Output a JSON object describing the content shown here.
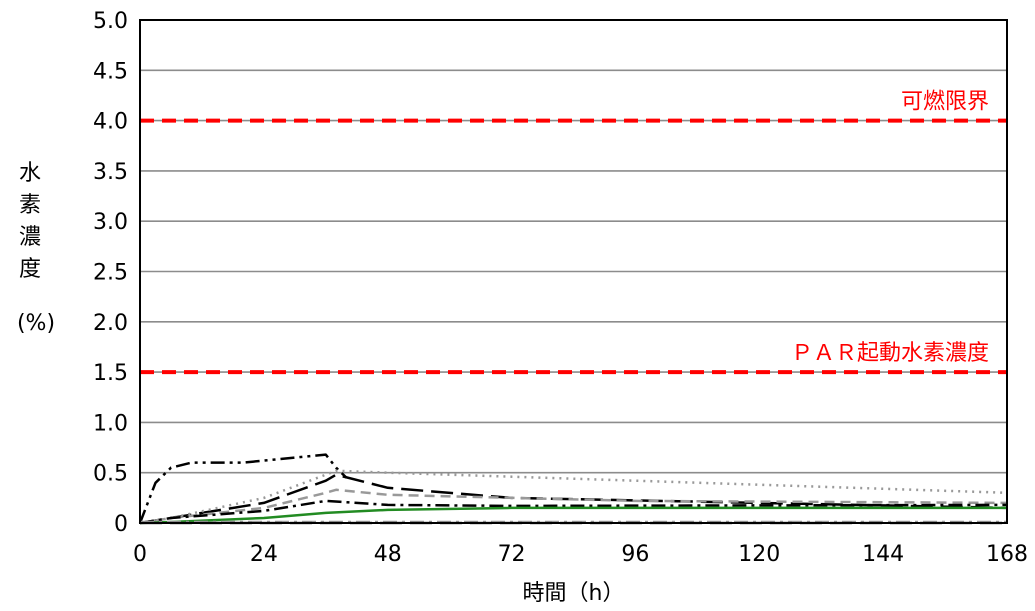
{
  "chart_data": {
    "type": "line",
    "xlabel": "時間（h）",
    "ylabel_chars": [
      "水",
      "素",
      "濃",
      "度"
    ],
    "ylabel_unit": "(%)",
    "xlim": [
      0,
      168
    ],
    "ylim": [
      0,
      5
    ],
    "x_ticks": [
      0,
      24,
      48,
      72,
      96,
      120,
      144,
      168
    ],
    "y_ticks": [
      0,
      0.5,
      1.0,
      1.5,
      2.0,
      2.5,
      3.0,
      3.5,
      4.0,
      4.5,
      5.0
    ],
    "y_tick_labels": [
      "0",
      "0.5",
      "1.0",
      "1.5",
      "2.0",
      "2.5",
      "3.0",
      "3.5",
      "4.0",
      "4.5",
      "5.0"
    ],
    "x_tick_labels": [
      "0",
      "24",
      "48",
      "72",
      "96",
      "120",
      "144",
      "168"
    ],
    "grid": "horizontal",
    "reference_lines": [
      {
        "label": "可燃限界",
        "y": 4.0,
        "color": "#ff0000"
      },
      {
        "label": "ＰＡＲ起動水素濃度",
        "y": 1.5,
        "color": "#ff0000"
      }
    ],
    "series": [
      {
        "style": "dash-dot-dot",
        "color": "#000000",
        "x": [
          0,
          3,
          6,
          10,
          20,
          36,
          38,
          40
        ],
        "y": [
          0,
          0.4,
          0.55,
          0.6,
          0.6,
          0.68,
          0.55,
          0.45
        ]
      },
      {
        "style": "long-dash",
        "color": "#000000",
        "x": [
          0,
          6,
          24,
          36,
          38,
          48,
          72,
          120,
          168
        ],
        "y": [
          0,
          0.05,
          0.2,
          0.42,
          0.48,
          0.35,
          0.25,
          0.2,
          0.15
        ]
      },
      {
        "style": "dotted",
        "color": "#999999",
        "x": [
          0,
          6,
          24,
          36,
          38,
          48,
          96,
          168
        ],
        "y": [
          0,
          0.05,
          0.25,
          0.48,
          0.52,
          0.5,
          0.42,
          0.3
        ]
      },
      {
        "style": "dashed",
        "color": "#999999",
        "x": [
          0,
          6,
          24,
          36,
          38,
          48,
          96,
          168
        ],
        "y": [
          0,
          0.05,
          0.15,
          0.3,
          0.33,
          0.28,
          0.22,
          0.2
        ]
      },
      {
        "style": "dash-dot",
        "color": "#000000",
        "x": [
          0,
          6,
          24,
          36,
          48,
          72,
          168
        ],
        "y": [
          0,
          0.05,
          0.12,
          0.22,
          0.18,
          0.17,
          0.18
        ]
      },
      {
        "style": "solid",
        "color": "#228b22",
        "x": [
          0,
          6,
          24,
          36,
          48,
          72,
          120,
          168
        ],
        "y": [
          0,
          0.01,
          0.05,
          0.1,
          0.13,
          0.15,
          0.15,
          0.15
        ]
      },
      {
        "style": "dash-dot",
        "color": "#999999",
        "x": [
          0,
          168
        ],
        "y": [
          0.01,
          0.01
        ]
      },
      {
        "style": "long-dash",
        "color": "#555555",
        "x": [
          0,
          168
        ],
        "y": [
          0.0,
          0.0
        ]
      }
    ]
  }
}
